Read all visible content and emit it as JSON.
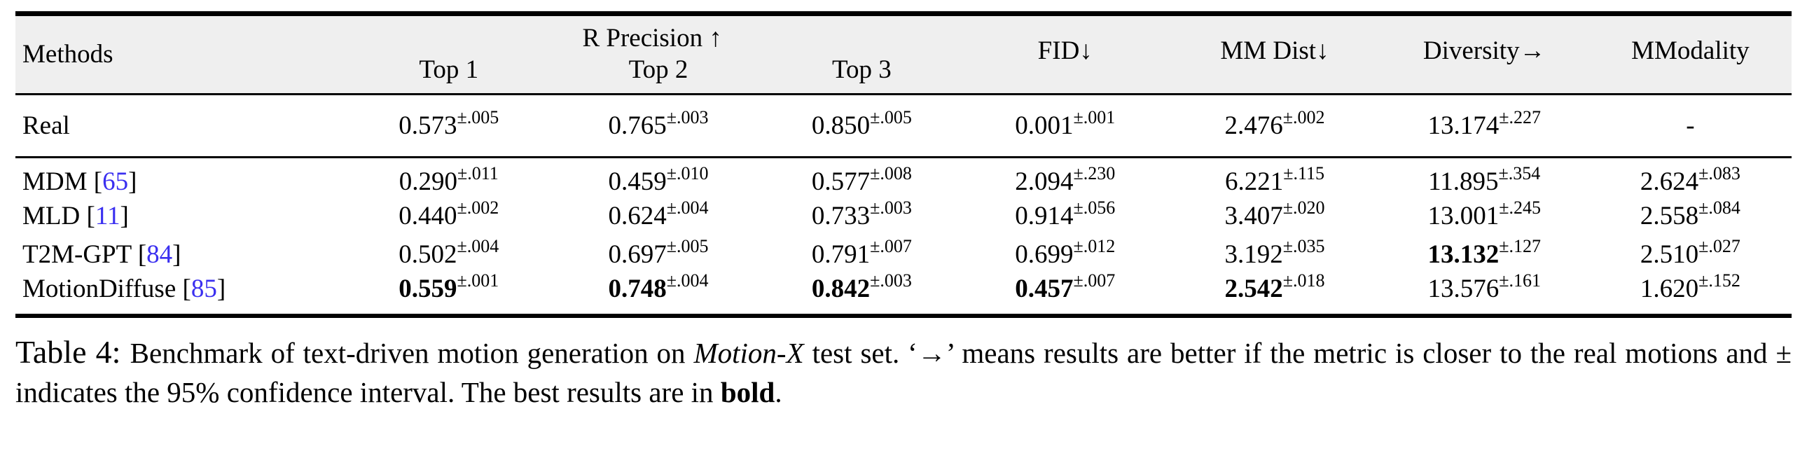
{
  "colors": {
    "citation_link": "#3a2ff0",
    "header_background": "#efefef",
    "rule": "#000000"
  },
  "table": {
    "header": {
      "methods": "Methods",
      "group": "R Precision ↑",
      "top1": "Top 1",
      "top2": "Top 2",
      "top3": "Top 3",
      "fid": "FID↓",
      "mm_dist": "MM Dist↓",
      "diversity": "Diversity→",
      "mmodality": "MModality"
    },
    "rows": [
      {
        "method": "Real",
        "cite": "",
        "cells": [
          {
            "v": "0.573",
            "ci": "±.005",
            "b": false
          },
          {
            "v": "0.765",
            "ci": "±.003",
            "b": false
          },
          {
            "v": "0.850",
            "ci": "±.005",
            "b": false
          },
          {
            "v": "0.001",
            "ci": "±.001",
            "b": false
          },
          {
            "v": "2.476",
            "ci": "±.002",
            "b": false
          },
          {
            "v": "13.174",
            "ci": "±.227",
            "b": false
          },
          {
            "v": "-",
            "ci": "",
            "b": false
          }
        ]
      },
      {
        "method": "MDM",
        "cite": "65",
        "cells": [
          {
            "v": "0.290",
            "ci": "±.011",
            "b": false
          },
          {
            "v": "0.459",
            "ci": "±.010",
            "b": false
          },
          {
            "v": "0.577",
            "ci": "±.008",
            "b": false
          },
          {
            "v": "2.094",
            "ci": "±.230",
            "b": false
          },
          {
            "v": "6.221",
            "ci": "±.115",
            "b": false
          },
          {
            "v": "11.895",
            "ci": "±.354",
            "b": false
          },
          {
            "v": "2.624",
            "ci": "±.083",
            "b": false
          }
        ]
      },
      {
        "method": "MLD",
        "cite": "11",
        "cells": [
          {
            "v": "0.440",
            "ci": "±.002",
            "b": false
          },
          {
            "v": "0.624",
            "ci": "±.004",
            "b": false
          },
          {
            "v": "0.733",
            "ci": "±.003",
            "b": false
          },
          {
            "v": "0.914",
            "ci": "±.056",
            "b": false
          },
          {
            "v": "3.407",
            "ci": "±.020",
            "b": false
          },
          {
            "v": "13.001",
            "ci": "±.245",
            "b": false
          },
          {
            "v": "2.558",
            "ci": "±.084",
            "b": false
          }
        ]
      },
      {
        "method": "T2M-GPT",
        "cite": "84",
        "cells": [
          {
            "v": "0.502",
            "ci": "±.004",
            "b": false
          },
          {
            "v": "0.697",
            "ci": "±.005",
            "b": false
          },
          {
            "v": "0.791",
            "ci": "±.007",
            "b": false
          },
          {
            "v": "0.699",
            "ci": "±.012",
            "b": false
          },
          {
            "v": "3.192",
            "ci": "±.035",
            "b": false
          },
          {
            "v": "13.132",
            "ci": "±.127",
            "b": true
          },
          {
            "v": "2.510",
            "ci": "±.027",
            "b": false
          }
        ]
      },
      {
        "method": "MotionDiffuse",
        "cite": "85",
        "cells": [
          {
            "v": "0.559",
            "ci": "±.001",
            "b": true
          },
          {
            "v": "0.748",
            "ci": "±.004",
            "b": true
          },
          {
            "v": "0.842",
            "ci": "±.003",
            "b": true
          },
          {
            "v": "0.457",
            "ci": "±.007",
            "b": true
          },
          {
            "v": "2.542",
            "ci": "±.018",
            "b": true
          },
          {
            "v": "13.576",
            "ci": "±.161",
            "b": false
          },
          {
            "v": "1.620",
            "ci": "±.152",
            "b": false
          }
        ]
      }
    ]
  },
  "caption": {
    "parts": [
      {
        "text": "Table 4: ",
        "style": "label"
      },
      {
        "text": "Benchmark of text-driven motion generation on ",
        "style": "normal"
      },
      {
        "text": "Motion-X",
        "style": "italic"
      },
      {
        "text": " test set. ‘→’ means results are better if the metric is closer to the real motions and ± indicates the 95% confidence interval. The best results are in ",
        "style": "normal"
      },
      {
        "text": "bold",
        "style": "bold"
      },
      {
        "text": ".",
        "style": "normal"
      }
    ]
  }
}
